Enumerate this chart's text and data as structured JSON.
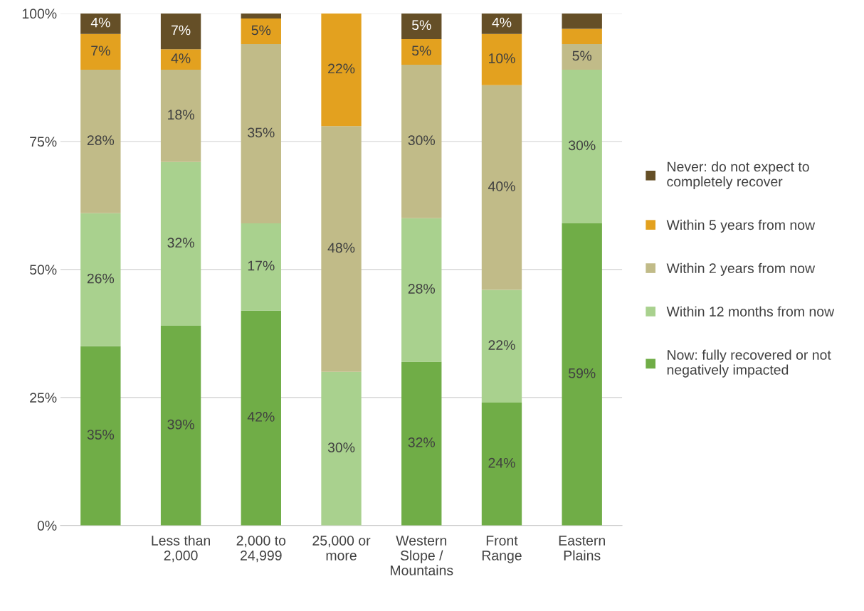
{
  "chart_data": {
    "type": "bar",
    "stacked": true,
    "categories": [
      null,
      "Less than\n2,000",
      "2,000 to\n24,999",
      "25,000 or\nmore",
      "Western\nSlope /\nMountains",
      "Front\nRange",
      "Eastern\nPlains"
    ],
    "series": [
      {
        "name": "Now: fully recovered or not\nnegatively impacted",
        "color": "#70ad47",
        "values": [
          35,
          39,
          42,
          0,
          32,
          24,
          59
        ],
        "value_labels": [
          "35%",
          "39%",
          "42%",
          null,
          "32%",
          "24%",
          "59%"
        ]
      },
      {
        "name": "Within 12 months from now",
        "color": "#a9d18e",
        "values": [
          26,
          32,
          17,
          30,
          28,
          22,
          30
        ],
        "value_labels": [
          "26%",
          "32%",
          "17%",
          "30%",
          "28%",
          "22%",
          "30%"
        ]
      },
      {
        "name": "Within 2 years from now",
        "color": "#c1bb88",
        "values": [
          28,
          18,
          35,
          48,
          30,
          40,
          5
        ],
        "value_labels": [
          "28%",
          "18%",
          "35%",
          "48%",
          "30%",
          "40%",
          "5%"
        ]
      },
      {
        "name": "Within 5 years from now",
        "color": "#e3a11f",
        "values": [
          7,
          4,
          5,
          22,
          5,
          10,
          3
        ],
        "value_labels": [
          "7%",
          "4%",
          "5%",
          "22%",
          "5%",
          "10%",
          null
        ]
      },
      {
        "name": "Never: do not expect to\ncompletely recover",
        "color": "#654f27",
        "values": [
          4,
          7,
          1,
          0,
          5,
          4,
          3
        ],
        "value_labels": [
          "4%",
          "7%",
          null,
          null,
          "5%",
          "4%",
          null
        ]
      }
    ],
    "ylim": [
      0,
      100
    ],
    "yticks": [
      {
        "value": 0,
        "label": "0%"
      },
      {
        "value": 25,
        "label": "25%"
      },
      {
        "value": 50,
        "label": "50%"
      },
      {
        "value": 75,
        "label": "75%"
      },
      {
        "value": 100,
        "label": "100%"
      }
    ],
    "grid": "y",
    "legend": "right"
  }
}
